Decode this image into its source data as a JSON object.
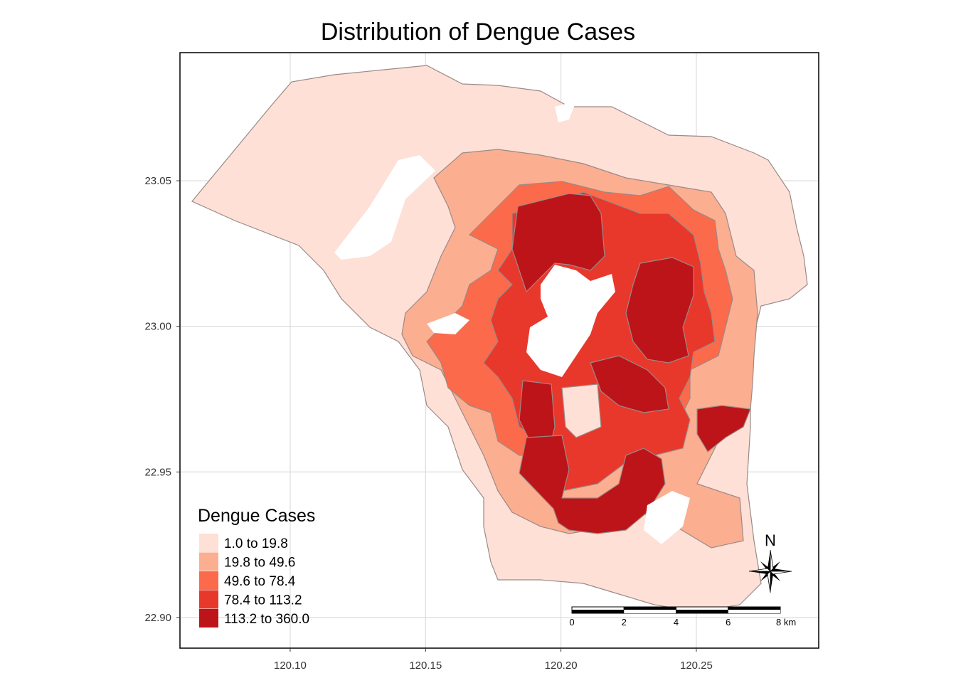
{
  "title": "Distribution of Dengue Cases",
  "axes": {
    "x_ticks": [
      "120.10",
      "120.15",
      "120.20",
      "120.25"
    ],
    "x_values": [
      120.1,
      120.15,
      120.2,
      120.25
    ],
    "x_range": [
      120.0593,
      120.2952
    ],
    "y_ticks": [
      "22.90",
      "22.95",
      "23.00",
      "23.05"
    ],
    "y_values": [
      22.9,
      22.95,
      23.0,
      23.05
    ],
    "y_range": [
      22.8895,
      23.094
    ],
    "grid": true
  },
  "legend": {
    "title": "Dengue Cases",
    "placement": "bottom-left",
    "classes": [
      {
        "label": "1.0 to 19.8",
        "color": "#fee0d6"
      },
      {
        "label": "19.8 to 49.6",
        "color": "#fcae91"
      },
      {
        "label": "49.6 to 78.4",
        "color": "#fb6a4a"
      },
      {
        "label": "78.4 to 113.2",
        "color": "#e8382c"
      },
      {
        "label": "113.2 to 360.0",
        "color": "#bc1419"
      }
    ]
  },
  "scale_bar": {
    "labels": [
      "0",
      "2",
      "4",
      "6",
      "8 km"
    ],
    "km_values": [
      0,
      2,
      4,
      6,
      8
    ]
  },
  "north_arrow": {
    "label": "N",
    "icon": "compass-rose-icon"
  }
}
